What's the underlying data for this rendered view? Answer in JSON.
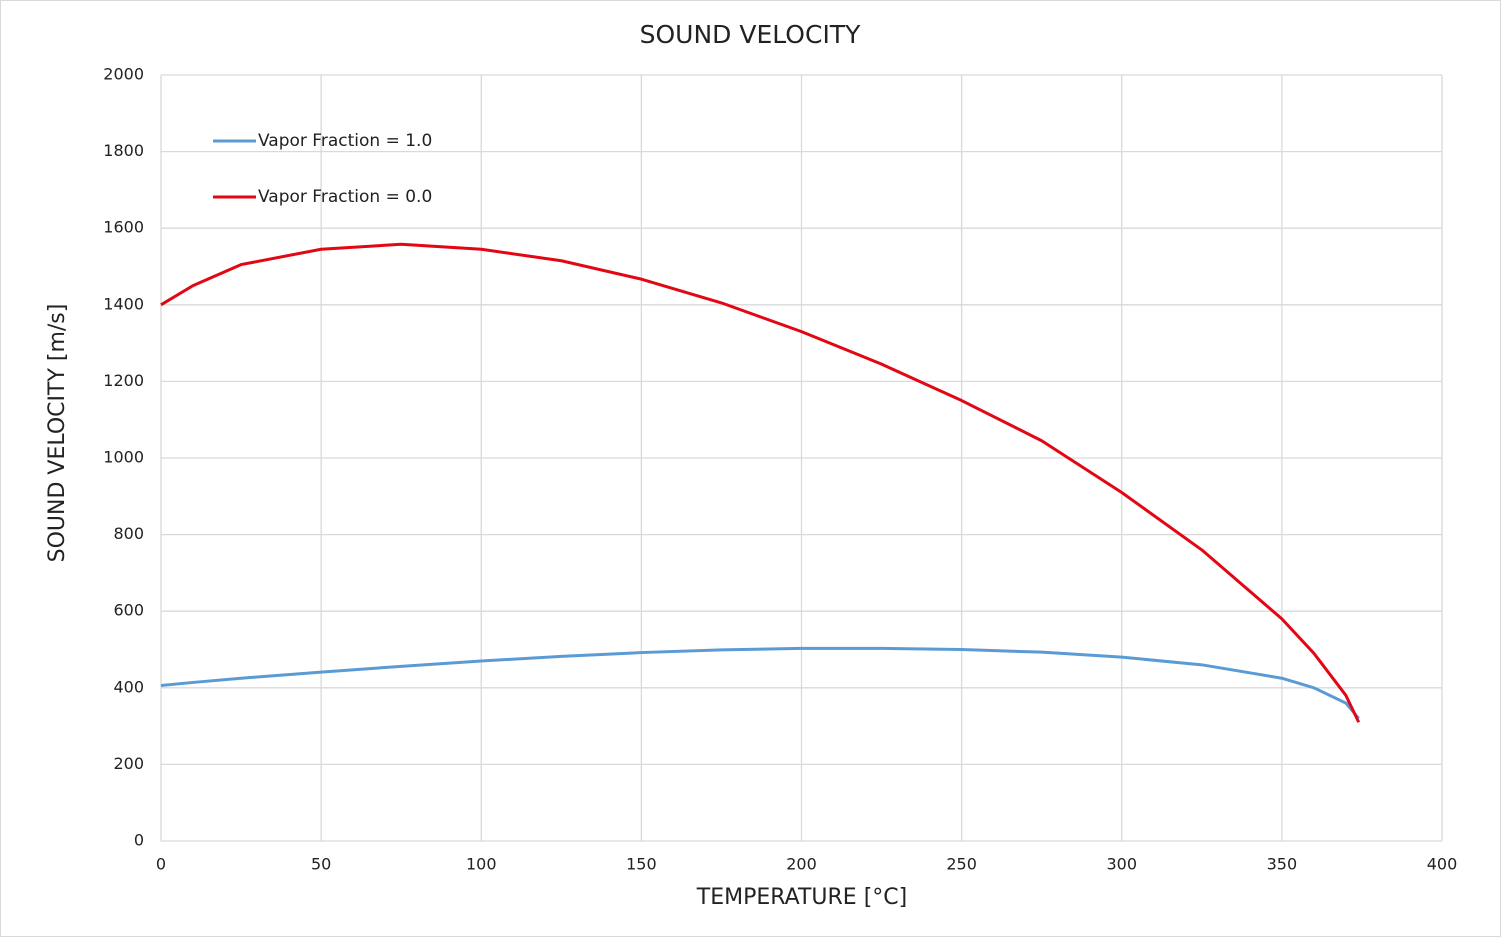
{
  "chart_data": {
    "type": "line",
    "title": "SOUND VELOCITY",
    "x_label": "TEMPERATURE [°C]",
    "y_label": "SOUND VELOCITY [m/s]",
    "x": [
      0,
      10,
      25,
      50,
      75,
      100,
      125,
      150,
      175,
      200,
      225,
      250,
      275,
      300,
      325,
      350,
      360,
      370,
      374
    ],
    "series": [
      {
        "name": "Vapor Fraction = 1.0",
        "color": "#5b9bd5",
        "values": [
          406,
          414,
          425,
          441,
          456,
          470,
          482,
          492,
          499,
          503,
          503,
          500,
          493,
          480,
          460,
          425,
          400,
          360,
          320
        ]
      },
      {
        "name": "Vapor Fraction = 0.0",
        "color": "#e30613",
        "values": [
          1400,
          1450,
          1505,
          1545,
          1558,
          1545,
          1515,
          1467,
          1405,
          1330,
          1245,
          1150,
          1045,
          910,
          760,
          580,
          490,
          380,
          310
        ]
      }
    ],
    "xlim": [
      0,
      400
    ],
    "xticks": [
      0,
      50,
      100,
      150,
      200,
      250,
      300,
      350,
      400
    ],
    "ylim": [
      0,
      2000
    ],
    "yticks": [
      0,
      200,
      400,
      600,
      800,
      1000,
      1200,
      1400,
      1600,
      1800,
      2000
    ],
    "grid": true,
    "legend": "upper-left"
  }
}
